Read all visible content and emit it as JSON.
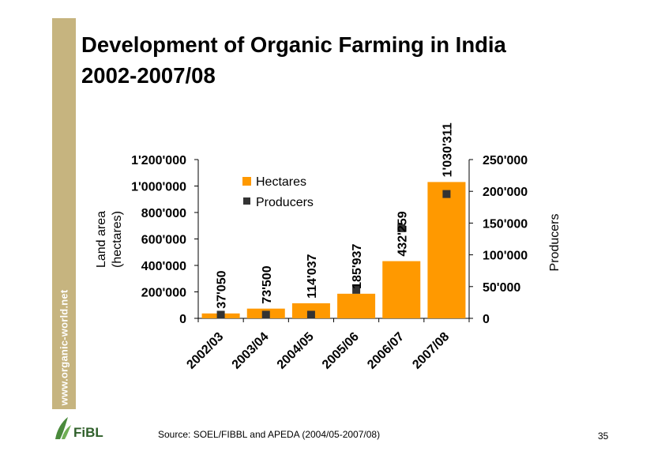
{
  "slide": {
    "title_line1": "Development of Organic Farming in India",
    "title_line2": "2002-2007/08",
    "side_text": "www.organic-world.net",
    "source": "Source: SOEL/FIBBL and APEDA (2004/05-2007/08)",
    "page_number": "35",
    "logo_text": "FiBL",
    "colors": {
      "sidebar": "#c6b47f",
      "bars": "#ff9900",
      "markers": "#333333",
      "logo_green": "#4a8a3c"
    }
  },
  "chart_data": {
    "type": "bar",
    "categories": [
      "2002/03",
      "2003/04",
      "2004/05",
      "2005/06",
      "2006/07",
      "2007/08"
    ],
    "series": [
      {
        "name": "Hectares",
        "kind": "bar",
        "axis": "left",
        "values": [
          37050,
          73500,
          114037,
          185937,
          432259,
          1030311
        ],
        "labels": [
          "37'050",
          "73'500",
          "114'037",
          "185'937",
          "432'259",
          "1'030'311"
        ]
      },
      {
        "name": "Producers",
        "kind": "marker",
        "axis": "right",
        "values": [
          5661,
          5661,
          5661,
          44926,
          141904,
          195741
        ]
      }
    ],
    "ylabel_left_line1": "Land area",
    "ylabel_left_line2": "(hectares)",
    "ylabel_right": "Producers",
    "ylim_left": [
      0,
      1200000
    ],
    "ylim_right": [
      0,
      250000
    ],
    "yticks_left": [
      "0",
      "200'000",
      "400'000",
      "600'000",
      "800'000",
      "1'000'000",
      "1'200'000"
    ],
    "yticks_right": [
      "0",
      "50'000",
      "100'000",
      "150'000",
      "200'000",
      "250'000"
    ],
    "legend_position": "top-center",
    "grid": false
  }
}
